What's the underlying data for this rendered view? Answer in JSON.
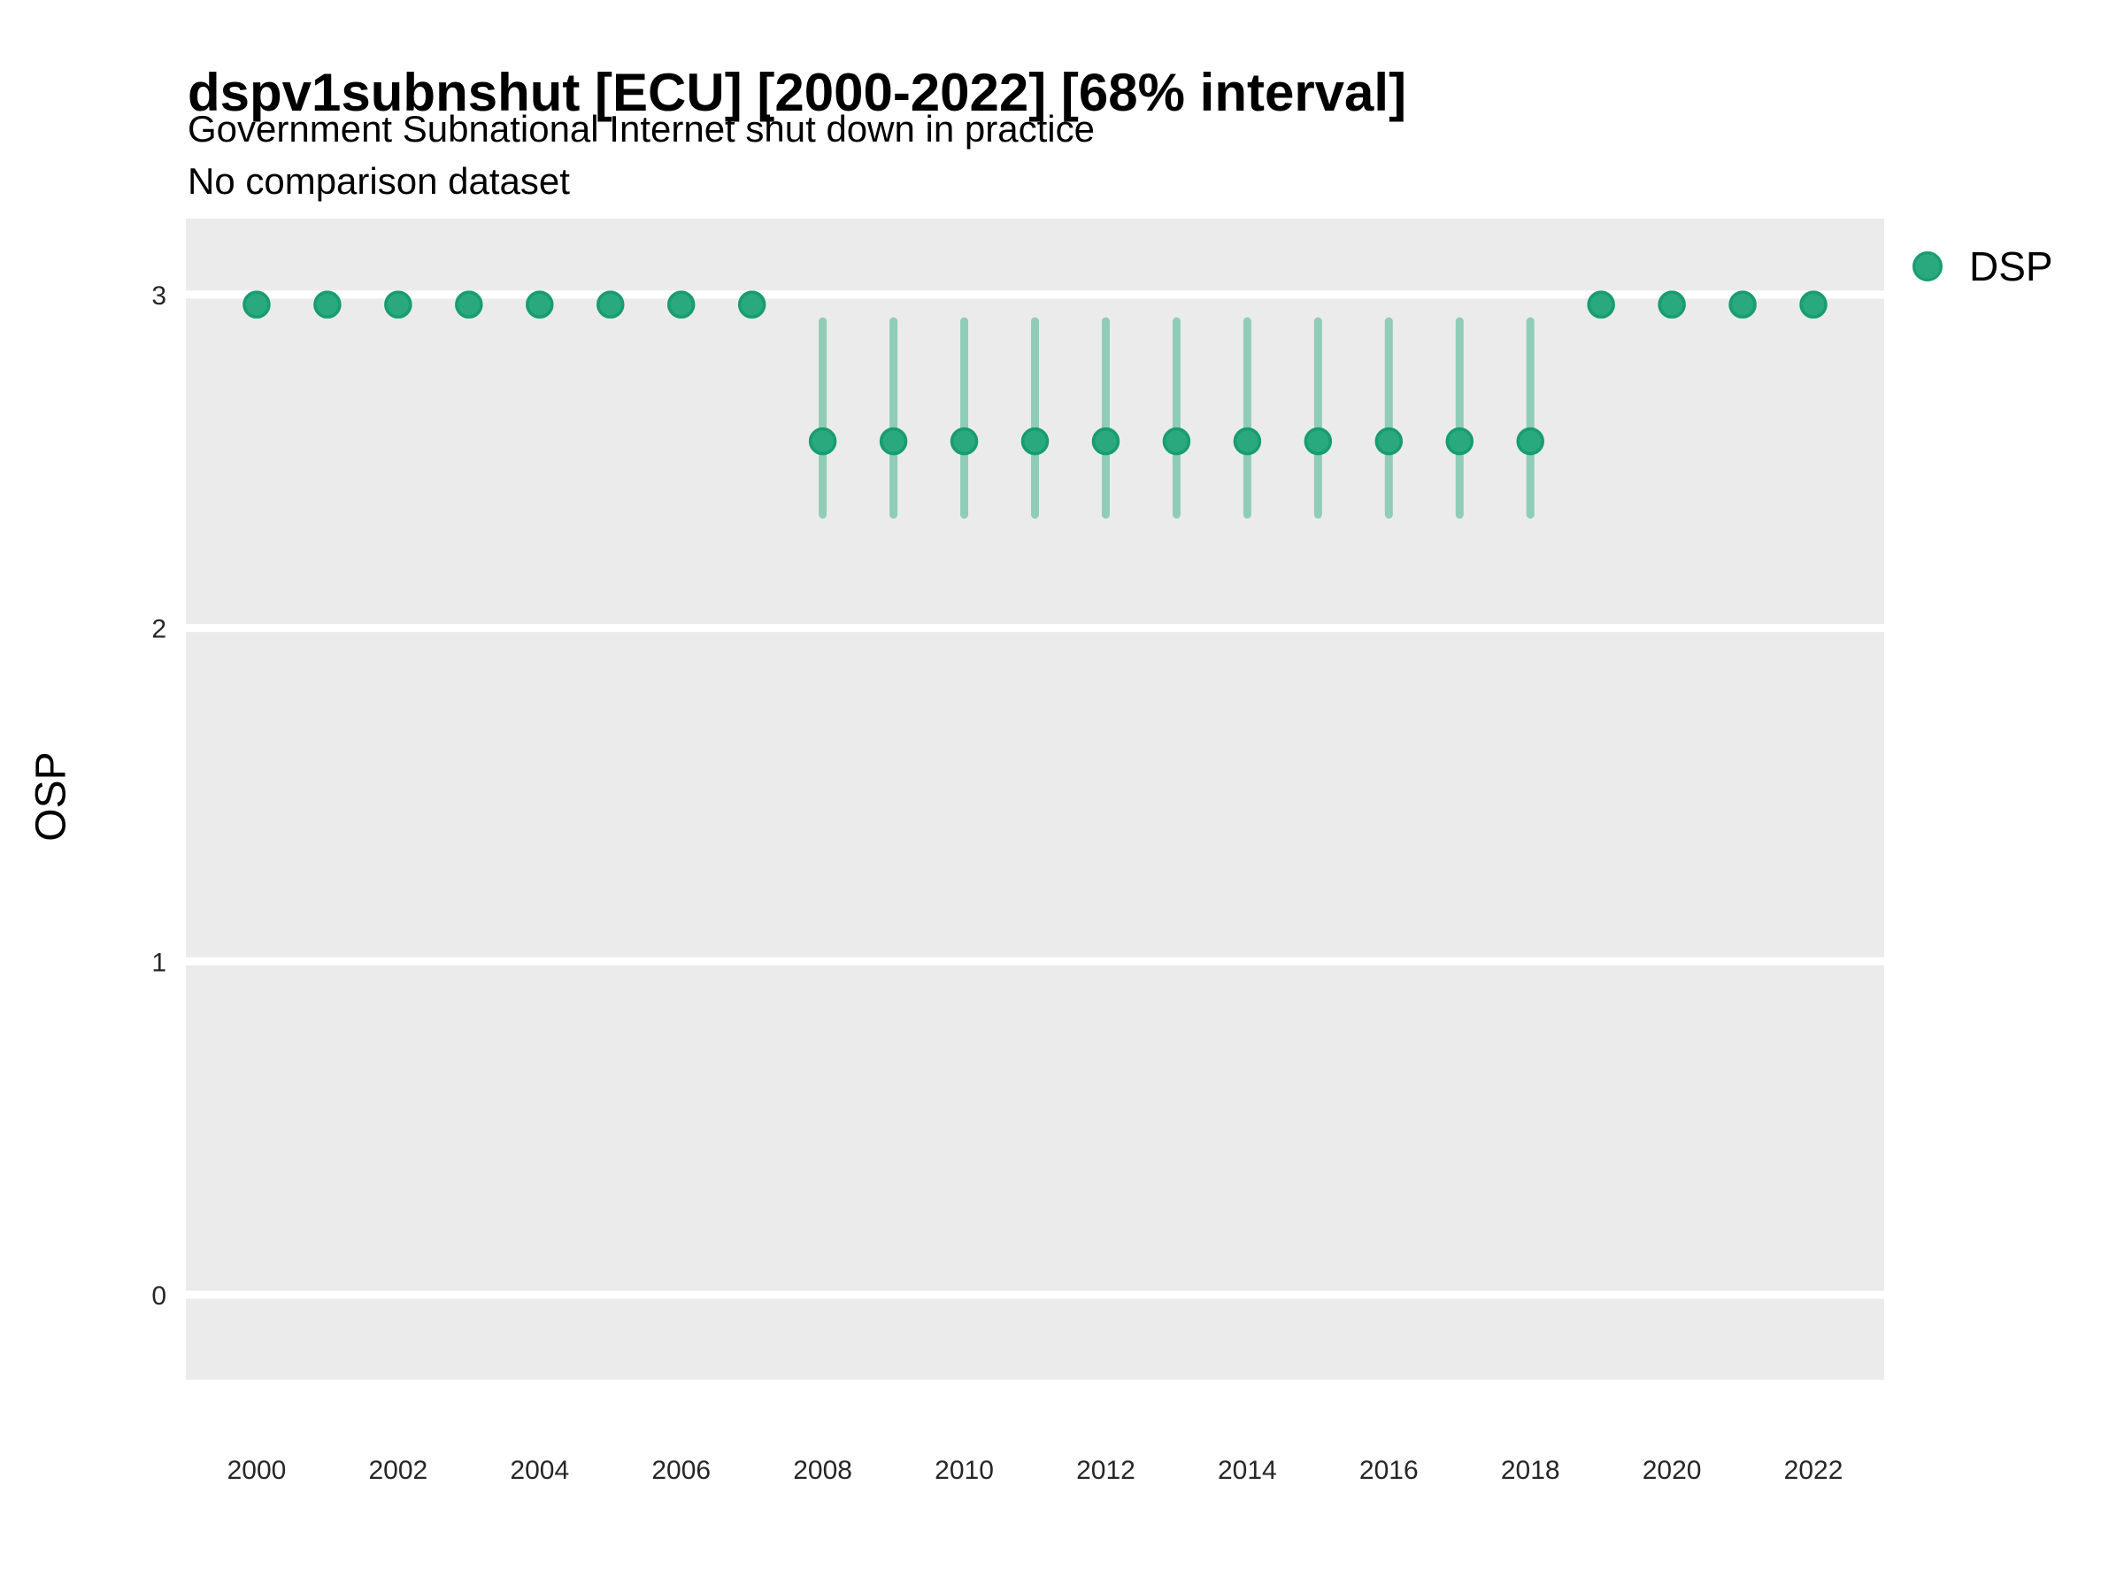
{
  "header": {
    "title": "dspv1subnshut [ECU] [2000-2022] [68% interval]",
    "subtitle": "Government Subnational Internet shut down in practice",
    "caption": "No comparison dataset"
  },
  "axes": {
    "y_title": "OSP"
  },
  "legend": {
    "position": "right-top",
    "entries": [
      {
        "label": "DSP",
        "fill": "#2AA87E",
        "stroke": "#189C72"
      }
    ]
  },
  "chart_data": {
    "type": "scatter",
    "title": "dspv1subnshut [ECU] [2000-2022] [68% interval]",
    "subtitle": "Government Subnational Internet shut down in practice",
    "caption": "No comparison dataset",
    "xlabel": "",
    "ylabel": "OSP",
    "x_ticks": [
      2000,
      2002,
      2004,
      2006,
      2008,
      2010,
      2012,
      2014,
      2016,
      2018,
      2020,
      2022
    ],
    "y_ticks": [
      0,
      1,
      2,
      3
    ],
    "xlim": [
      1999.0,
      2023.0
    ],
    "ylim": [
      -0.255,
      3.228
    ],
    "grid": "white major gridlines on gray panel, no minor gridlines",
    "legend_position": "right-top",
    "colors": {
      "panel_bg": "#EBEBEB",
      "gridline": "#FFFFFF",
      "point_fill": "#2AA87E",
      "point_stroke": "#189C72",
      "interval": "#8FCDB6",
      "tick_text": "#262626"
    },
    "series": [
      {
        "name": "DSP",
        "interval_level": "68%",
        "points": [
          {
            "year": 2000,
            "est": 2.97,
            "lo": null,
            "hi": null
          },
          {
            "year": 2001,
            "est": 2.97,
            "lo": null,
            "hi": null
          },
          {
            "year": 2002,
            "est": 2.97,
            "lo": null,
            "hi": null
          },
          {
            "year": 2003,
            "est": 2.97,
            "lo": null,
            "hi": null
          },
          {
            "year": 2004,
            "est": 2.97,
            "lo": null,
            "hi": null
          },
          {
            "year": 2005,
            "est": 2.97,
            "lo": null,
            "hi": null
          },
          {
            "year": 2006,
            "est": 2.97,
            "lo": null,
            "hi": null
          },
          {
            "year": 2007,
            "est": 2.97,
            "lo": null,
            "hi": null
          },
          {
            "year": 2008,
            "est": 2.56,
            "lo": 2.34,
            "hi": 2.92
          },
          {
            "year": 2009,
            "est": 2.56,
            "lo": 2.34,
            "hi": 2.92
          },
          {
            "year": 2010,
            "est": 2.56,
            "lo": 2.34,
            "hi": 2.92
          },
          {
            "year": 2011,
            "est": 2.56,
            "lo": 2.34,
            "hi": 2.92
          },
          {
            "year": 2012,
            "est": 2.56,
            "lo": 2.34,
            "hi": 2.92
          },
          {
            "year": 2013,
            "est": 2.56,
            "lo": 2.34,
            "hi": 2.92
          },
          {
            "year": 2014,
            "est": 2.56,
            "lo": 2.34,
            "hi": 2.92
          },
          {
            "year": 2015,
            "est": 2.56,
            "lo": 2.34,
            "hi": 2.92
          },
          {
            "year": 2016,
            "est": 2.56,
            "lo": 2.34,
            "hi": 2.92
          },
          {
            "year": 2017,
            "est": 2.56,
            "lo": 2.34,
            "hi": 2.92
          },
          {
            "year": 2018,
            "est": 2.56,
            "lo": 2.34,
            "hi": 2.92
          },
          {
            "year": 2019,
            "est": 2.97,
            "lo": null,
            "hi": null
          },
          {
            "year": 2020,
            "est": 2.97,
            "lo": null,
            "hi": null
          },
          {
            "year": 2021,
            "est": 2.97,
            "lo": null,
            "hi": null
          },
          {
            "year": 2022,
            "est": 2.97,
            "lo": null,
            "hi": null
          }
        ]
      }
    ]
  }
}
